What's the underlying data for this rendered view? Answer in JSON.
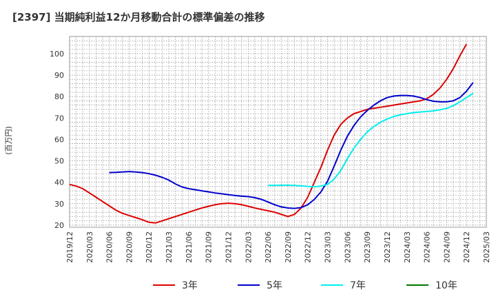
{
  "chart_data": {
    "type": "line",
    "title": "[2397]  当期純利益12か月移動合計の標準偏差の推移",
    "ylabel": "(百万円)",
    "xlabel": "",
    "ylim": [
      19,
      108
    ],
    "yticks": [
      20,
      30,
      40,
      50,
      60,
      70,
      80,
      90,
      100
    ],
    "x_categories": [
      "2019/12",
      "2020/03",
      "2020/06",
      "2020/09",
      "2020/12",
      "2021/03",
      "2021/06",
      "2021/09",
      "2021/12",
      "2022/03",
      "2022/06",
      "2022/09",
      "2022/12",
      "2023/03",
      "2023/06",
      "2023/09",
      "2023/12",
      "2024/03",
      "2024/06",
      "2024/09",
      "2024/12",
      "2025/03"
    ],
    "grid": true,
    "legend_position": "bottom",
    "series": [
      {
        "name": "3年",
        "color": "#dd0000",
        "start_index": 0,
        "values": [
          39,
          38.2,
          37,
          35,
          33,
          31,
          29,
          27,
          25.5,
          24.5,
          23.5,
          22.5,
          21.3,
          21,
          22,
          23,
          24,
          25,
          26,
          27,
          28,
          28.8,
          29.5,
          30,
          30.2,
          30,
          29.5,
          28.8,
          28,
          27.3,
          26.7,
          26,
          25,
          24,
          25,
          28,
          33,
          40,
          47,
          55,
          62,
          67,
          70,
          72,
          73,
          74,
          74.5,
          75,
          75.5,
          76,
          76.5,
          77,
          77.5,
          78,
          79,
          81,
          84,
          88,
          93,
          99,
          104.5
        ]
      },
      {
        "name": "5年",
        "color": "#0000cc",
        "start_index": 6,
        "values": [
          44.5,
          44.6,
          44.8,
          45,
          44.8,
          44.5,
          44,
          43.3,
          42.3,
          41,
          39.2,
          37.8,
          37,
          36.5,
          36,
          35.5,
          35,
          34.6,
          34.2,
          33.8,
          33.5,
          33.3,
          32.8,
          32,
          30.8,
          29.5,
          28.5,
          28,
          27.8,
          28.2,
          29.5,
          32,
          35.5,
          40.5,
          47.5,
          55,
          61.5,
          66.5,
          70.5,
          73.5,
          76,
          78,
          79.5,
          80.2,
          80.5,
          80.5,
          80.2,
          79.5,
          78.5,
          77.8,
          77.5,
          77.5,
          78,
          79.5,
          82.5,
          86.5
        ]
      },
      {
        "name": "7年",
        "color": "#00eeee",
        "start_index": 30,
        "values": [
          38.5,
          38.5,
          38.6,
          38.6,
          38.5,
          38.3,
          38.1,
          37.9,
          38.2,
          39,
          41.5,
          45.5,
          51,
          56,
          60,
          63.5,
          66,
          68,
          69.5,
          70.7,
          71.5,
          72,
          72.5,
          72.8,
          73,
          73.3,
          73.8,
          74.5,
          75.7,
          77.5,
          79.5,
          81.5
        ]
      },
      {
        "name": "10年",
        "color": "#007700",
        "start_index": 0,
        "values": []
      }
    ]
  }
}
